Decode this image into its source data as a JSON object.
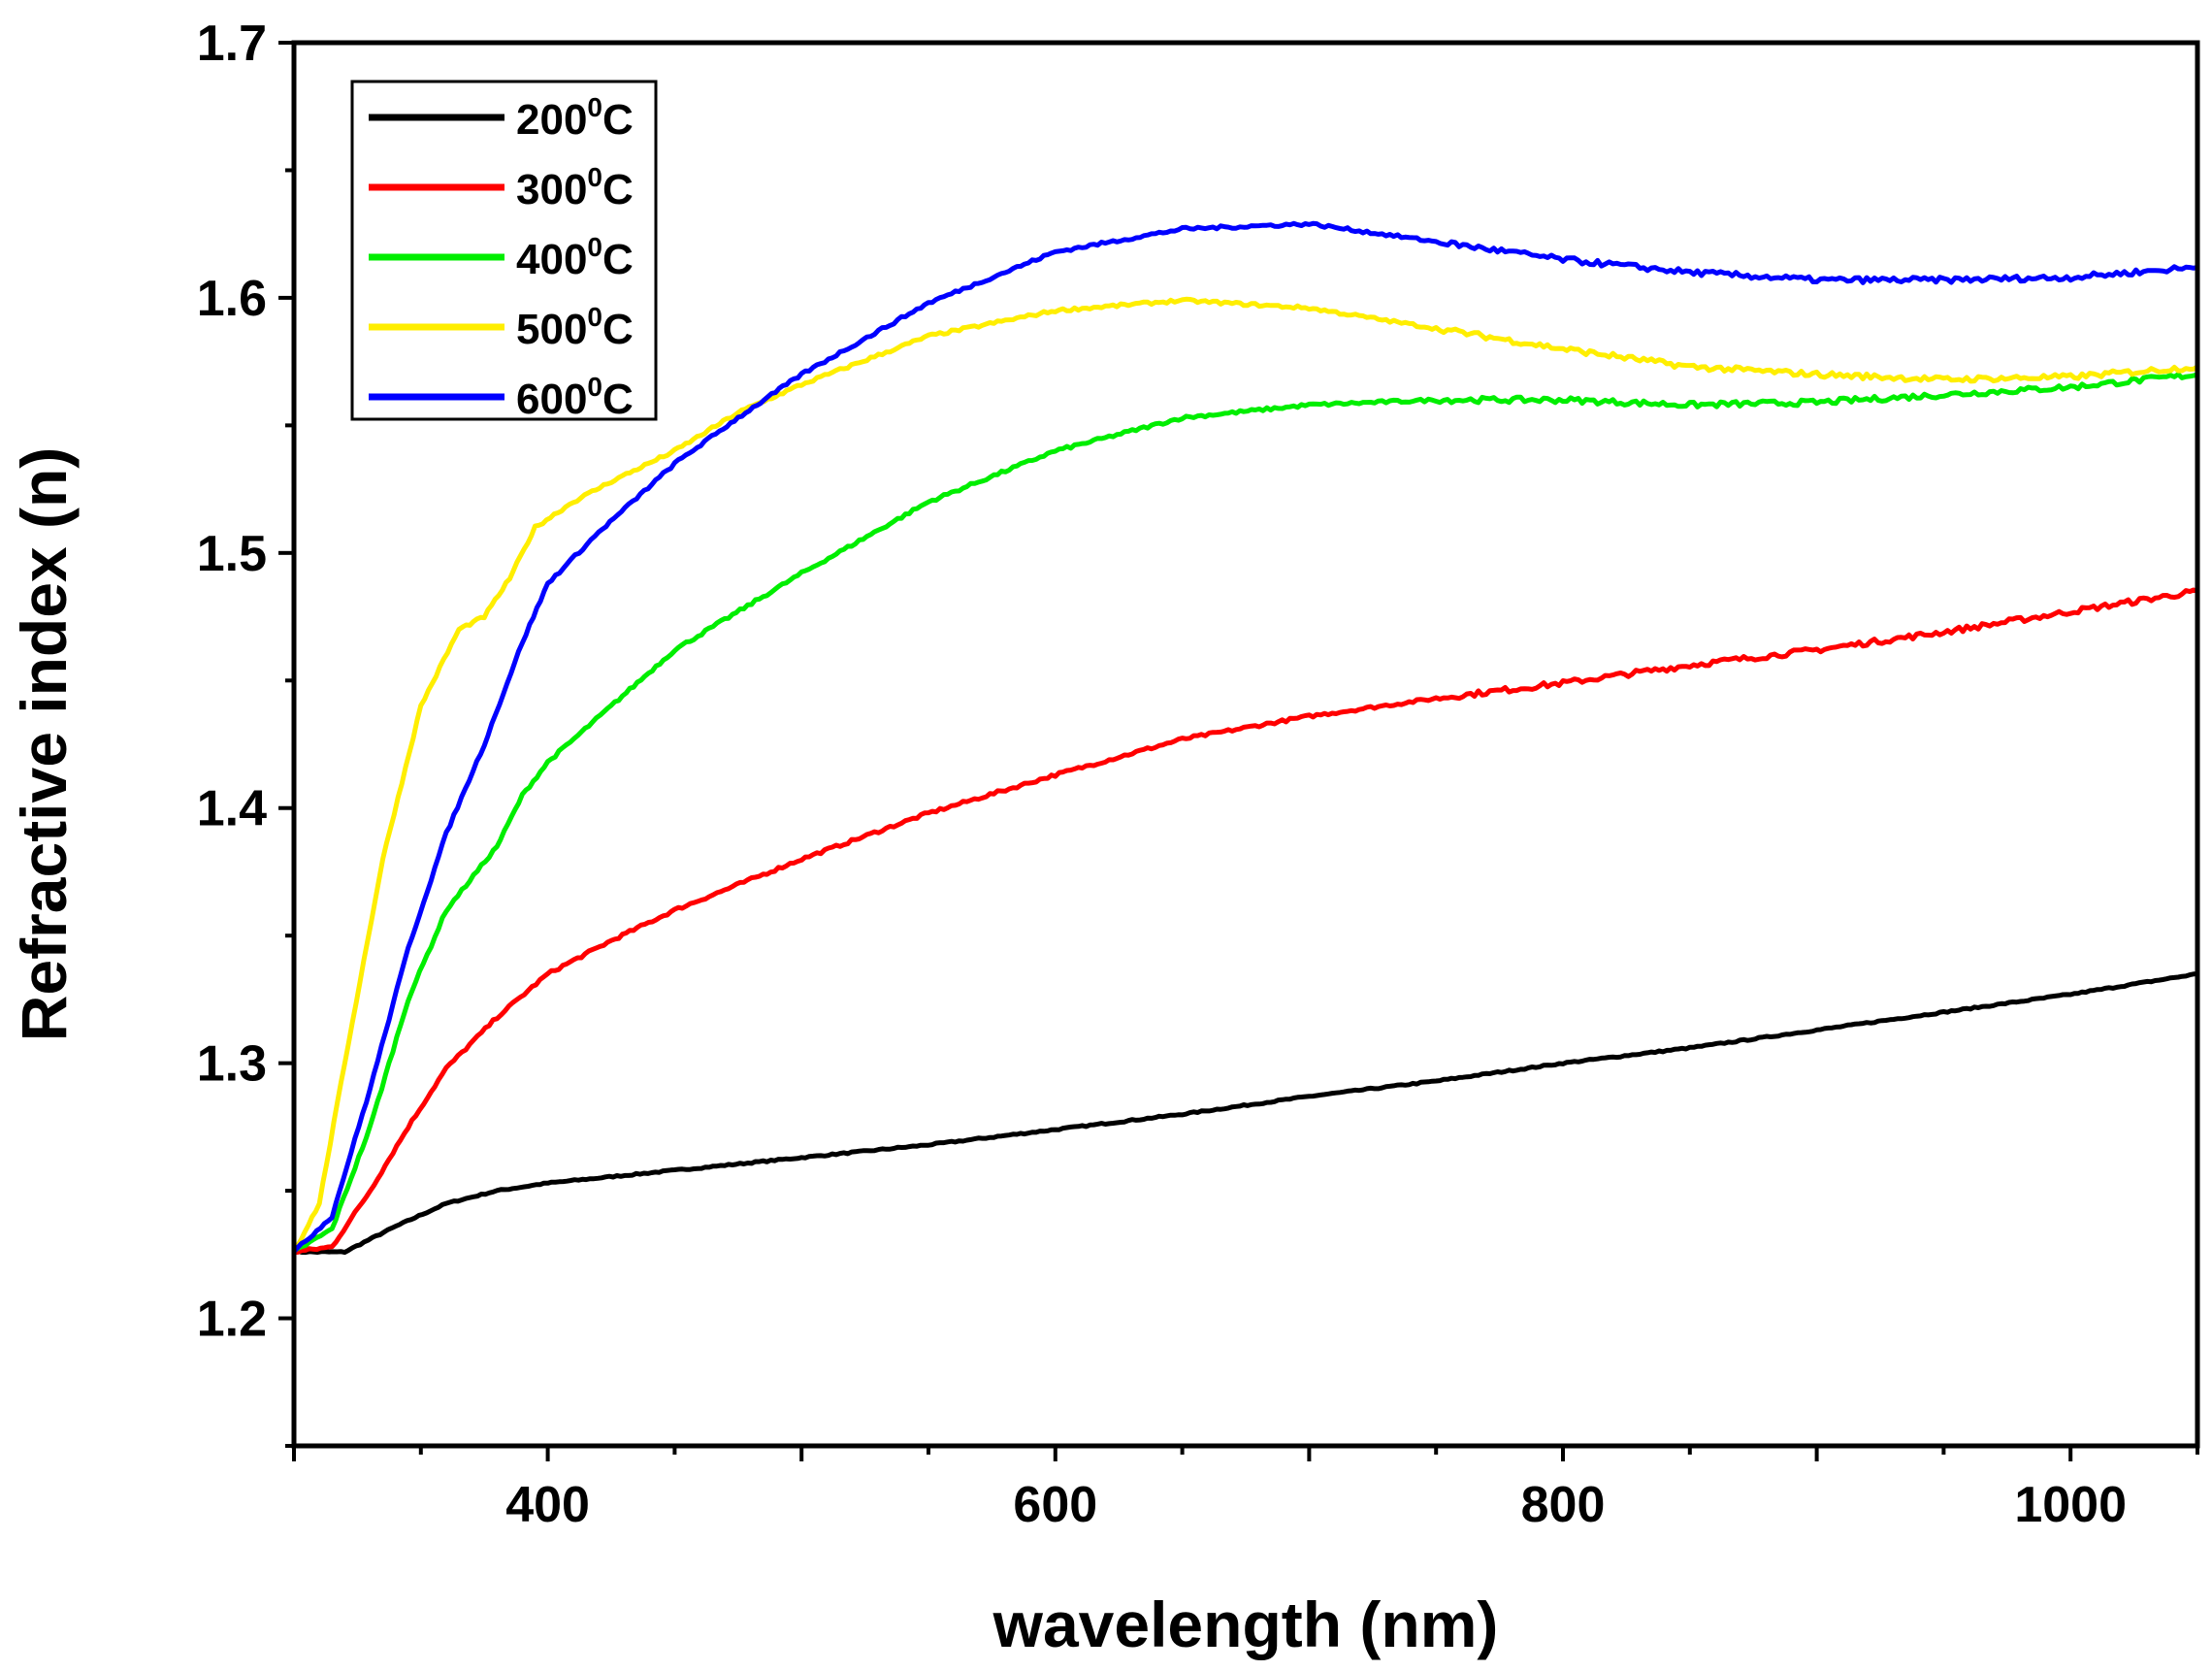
{
  "chart_data": {
    "type": "line",
    "title": "",
    "xlabel": "wavelength (nm)",
    "ylabel": "Refractive index (n)",
    "xlim": [
      300,
      1050
    ],
    "ylim": [
      1.15,
      1.7
    ],
    "x_ticks": [
      400,
      600,
      800,
      1000
    ],
    "y_ticks": [
      1.2,
      1.3,
      1.4,
      1.5,
      1.6,
      1.7
    ],
    "legend_position": "top-left",
    "series": [
      {
        "name": "200°C",
        "label_base": "200",
        "label_sup": "0",
        "label_unit": "C",
        "color": "#000000",
        "points": [
          [
            300,
            1.226
          ],
          [
            320,
            1.226
          ],
          [
            340,
            1.236
          ],
          [
            360,
            1.245
          ],
          [
            380,
            1.25
          ],
          [
            400,
            1.253
          ],
          [
            450,
            1.258
          ],
          [
            500,
            1.263
          ],
          [
            550,
            1.268
          ],
          [
            600,
            1.274
          ],
          [
            650,
            1.28
          ],
          [
            700,
            1.287
          ],
          [
            750,
            1.293
          ],
          [
            800,
            1.3
          ],
          [
            850,
            1.306
          ],
          [
            900,
            1.313
          ],
          [
            950,
            1.32
          ],
          [
            1000,
            1.327
          ],
          [
            1050,
            1.335
          ]
        ]
      },
      {
        "name": "300°C",
        "label_base": "300",
        "label_sup": "0",
        "label_unit": "C",
        "color": "#ff0000",
        "points": [
          [
            300,
            1.226
          ],
          [
            315,
            1.228
          ],
          [
            330,
            1.25
          ],
          [
            345,
            1.275
          ],
          [
            360,
            1.298
          ],
          [
            380,
            1.318
          ],
          [
            400,
            1.335
          ],
          [
            425,
            1.348
          ],
          [
            450,
            1.36
          ],
          [
            500,
            1.38
          ],
          [
            550,
            1.398
          ],
          [
            600,
            1.413
          ],
          [
            650,
            1.427
          ],
          [
            700,
            1.436
          ],
          [
            750,
            1.443
          ],
          [
            800,
            1.449
          ],
          [
            850,
            1.456
          ],
          [
            900,
            1.462
          ],
          [
            950,
            1.469
          ],
          [
            1000,
            1.477
          ],
          [
            1050,
            1.485
          ]
        ]
      },
      {
        "name": "400°C",
        "label_base": "400",
        "label_sup": "0",
        "label_unit": "C",
        "color": "#00ee00",
        "points": [
          [
            300,
            1.226
          ],
          [
            315,
            1.235
          ],
          [
            330,
            1.275
          ],
          [
            345,
            1.325
          ],
          [
            360,
            1.36
          ],
          [
            380,
            1.385
          ],
          [
            390,
            1.405
          ],
          [
            400,
            1.418
          ],
          [
            425,
            1.44
          ],
          [
            450,
            1.462
          ],
          [
            500,
            1.492
          ],
          [
            550,
            1.52
          ],
          [
            600,
            1.54
          ],
          [
            650,
            1.553
          ],
          [
            700,
            1.558
          ],
          [
            750,
            1.56
          ],
          [
            800,
            1.56
          ],
          [
            850,
            1.558
          ],
          [
            900,
            1.559
          ],
          [
            950,
            1.562
          ],
          [
            1000,
            1.565
          ],
          [
            1050,
            1.57
          ]
        ]
      },
      {
        "name": "500°C",
        "label_base": "500",
        "label_sup": "0",
        "label_unit": "C",
        "color": "#ffee00",
        "points": [
          [
            300,
            1.226
          ],
          [
            310,
            1.245
          ],
          [
            320,
            1.3
          ],
          [
            335,
            1.38
          ],
          [
            350,
            1.44
          ],
          [
            365,
            1.47
          ],
          [
            375,
            1.475
          ],
          [
            385,
            1.49
          ],
          [
            395,
            1.51
          ],
          [
            410,
            1.52
          ],
          [
            425,
            1.528
          ],
          [
            450,
            1.54
          ],
          [
            475,
            1.555
          ],
          [
            500,
            1.566
          ],
          [
            550,
            1.585
          ],
          [
            600,
            1.595
          ],
          [
            650,
            1.599
          ],
          [
            700,
            1.596
          ],
          [
            750,
            1.588
          ],
          [
            800,
            1.58
          ],
          [
            850,
            1.573
          ],
          [
            900,
            1.57
          ],
          [
            950,
            1.568
          ],
          [
            1000,
            1.569
          ],
          [
            1050,
            1.573
          ]
        ]
      },
      {
        "name": "600°C",
        "label_base": "600",
        "label_sup": "0",
        "label_unit": "C",
        "color": "#0000ff",
        "points": [
          [
            300,
            1.226
          ],
          [
            315,
            1.24
          ],
          [
            330,
            1.29
          ],
          [
            345,
            1.345
          ],
          [
            360,
            1.39
          ],
          [
            375,
            1.425
          ],
          [
            390,
            1.465
          ],
          [
            400,
            1.488
          ],
          [
            420,
            1.508
          ],
          [
            450,
            1.535
          ],
          [
            475,
            1.553
          ],
          [
            500,
            1.57
          ],
          [
            550,
            1.598
          ],
          [
            600,
            1.618
          ],
          [
            650,
            1.627
          ],
          [
            700,
            1.629
          ],
          [
            750,
            1.622
          ],
          [
            800,
            1.615
          ],
          [
            850,
            1.61
          ],
          [
            900,
            1.607
          ],
          [
            950,
            1.607
          ],
          [
            1000,
            1.608
          ],
          [
            1050,
            1.612
          ]
        ]
      }
    ]
  }
}
